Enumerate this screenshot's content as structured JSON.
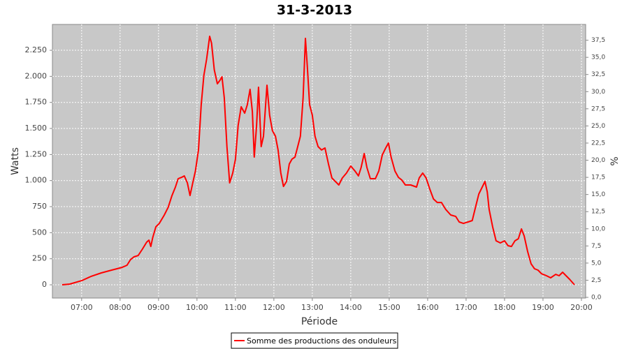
{
  "chart_data": {
    "type": "line",
    "title": "31-3-2013",
    "x_label": "Période",
    "y_label": "Watts",
    "y2_label": "%",
    "grid": true,
    "legend": "bottom",
    "x": [
      6.49,
      6.69,
      7.0,
      7.24,
      7.51,
      7.78,
      8.05,
      8.18,
      8.27,
      8.36,
      8.47,
      8.58,
      8.69,
      8.75,
      8.8,
      8.85,
      8.93,
      9.02,
      9.15,
      9.25,
      9.35,
      9.44,
      9.51,
      9.6,
      9.67,
      9.75,
      9.82,
      9.89,
      9.96,
      10.04,
      10.11,
      10.18,
      10.25,
      10.33,
      10.38,
      10.45,
      10.53,
      10.6,
      10.65,
      10.71,
      10.78,
      10.85,
      10.93,
      11.0,
      11.07,
      11.15,
      11.24,
      11.31,
      11.38,
      11.44,
      11.49,
      11.55,
      11.6,
      11.67,
      11.73,
      11.82,
      11.89,
      11.96,
      12.04,
      12.11,
      12.18,
      12.25,
      12.33,
      12.4,
      12.47,
      12.55,
      12.62,
      12.69,
      12.76,
      12.82,
      12.87,
      12.93,
      13.0,
      13.07,
      13.15,
      13.24,
      13.33,
      13.42,
      13.51,
      13.6,
      13.69,
      13.78,
      13.89,
      14.0,
      14.11,
      14.2,
      14.27,
      14.35,
      14.42,
      14.51,
      14.64,
      14.73,
      14.82,
      14.91,
      14.98,
      15.05,
      15.15,
      15.24,
      15.33,
      15.42,
      15.56,
      15.71,
      15.78,
      15.87,
      15.96,
      16.05,
      16.15,
      16.25,
      16.36,
      16.47,
      16.6,
      16.73,
      16.82,
      16.93,
      17.05,
      17.16,
      17.24,
      17.33,
      17.42,
      17.49,
      17.55,
      17.6,
      17.69,
      17.78,
      17.89,
      18.0,
      18.09,
      18.18,
      18.27,
      18.36,
      18.44,
      18.51,
      18.6,
      18.69,
      18.78,
      18.87,
      18.96,
      19.09,
      19.2,
      19.33,
      19.42,
      19.51,
      19.6,
      19.69,
      19.82
    ],
    "series": [
      {
        "name": "Somme des productions des onduleurs",
        "color": "#ff0000",
        "values": [
          0,
          7,
          40,
          80,
          114,
          141,
          167,
          188,
          241,
          268,
          281,
          342,
          409,
          429,
          368,
          455,
          556,
          589,
          670,
          743,
          857,
          938,
          1018,
          1031,
          1045,
          978,
          857,
          978,
          1092,
          1293,
          1728,
          2009,
          2163,
          2384,
          2317,
          2063,
          1929,
          1962,
          1996,
          1795,
          1326,
          978,
          1072,
          1205,
          1527,
          1708,
          1647,
          1728,
          1875,
          1661,
          1226,
          1527,
          1895,
          1326,
          1426,
          1915,
          1627,
          1480,
          1426,
          1293,
          1072,
          944,
          991,
          1159,
          1205,
          1226,
          1326,
          1426,
          1795,
          2364,
          2096,
          1728,
          1627,
          1426,
          1326,
          1293,
          1313,
          1159,
          1025,
          991,
          958,
          1025,
          1072,
          1139,
          1092,
          1045,
          1125,
          1259,
          1125,
          1018,
          1018,
          1092,
          1246,
          1313,
          1360,
          1226,
          1092,
          1031,
          1005,
          958,
          958,
          938,
          1025,
          1072,
          1025,
          924,
          824,
          790,
          790,
          723,
          670,
          656,
          603,
          589,
          603,
          616,
          737,
          871,
          938,
          991,
          891,
          723,
          556,
          422,
          402,
          422,
          375,
          368,
          422,
          442,
          536,
          469,
          321,
          201,
          154,
          141,
          107,
          87,
          67,
          100,
          87,
          121,
          87,
          54,
          0
        ]
      }
    ],
    "xlim": [
      6.24,
      20.11
    ],
    "xticks": [
      {
        "value": 7,
        "label": "07:00"
      },
      {
        "value": 8,
        "label": "08:00"
      },
      {
        "value": 9,
        "label": "09:00"
      },
      {
        "value": 10,
        "label": "10:00"
      },
      {
        "value": 11,
        "label": "11:00"
      },
      {
        "value": 12,
        "label": "12:00"
      },
      {
        "value": 13,
        "label": "13:00"
      },
      {
        "value": 14,
        "label": "14:00"
      },
      {
        "value": 15,
        "label": "15:00"
      },
      {
        "value": 16,
        "label": "16:00"
      },
      {
        "value": 17,
        "label": "17:00"
      },
      {
        "value": 18,
        "label": "18:00"
      },
      {
        "value": 19,
        "label": "19:00"
      },
      {
        "value": 20,
        "label": "20:00"
      }
    ],
    "ylim": [
      -127,
      2498
    ],
    "yticks": [
      0,
      250,
      500,
      750,
      {
        "value": 1000,
        "label": "1.000"
      },
      {
        "value": 1250,
        "label": "1.250"
      },
      {
        "value": 1500,
        "label": "1.500"
      },
      {
        "value": 1750,
        "label": "1.750"
      },
      {
        "value": 2000,
        "label": "2.000"
      },
      {
        "value": 2250,
        "label": "2.250"
      }
    ],
    "y2lim": [
      -0.1,
      39.8
    ],
    "y2ticks": [
      {
        "value": 0,
        "label": "0,0"
      },
      {
        "value": 2.5,
        "label": "2,5"
      },
      {
        "value": 5,
        "label": "5,0"
      },
      {
        "value": 7.5,
        "label": "7,5"
      },
      {
        "value": 10,
        "label": "10,0"
      },
      {
        "value": 12.5,
        "label": "12,5"
      },
      {
        "value": 15,
        "label": "15,0"
      },
      {
        "value": 17.5,
        "label": "17,5"
      },
      {
        "value": 20,
        "label": "20,0"
      },
      {
        "value": 22.5,
        "label": "22,5"
      },
      {
        "value": 25,
        "label": "25,0"
      },
      {
        "value": 27.5,
        "label": "27,5"
      },
      {
        "value": 30,
        "label": "30,0"
      },
      {
        "value": 32.5,
        "label": "32,5"
      },
      {
        "value": 35,
        "label": "35,0"
      },
      {
        "value": 37.5,
        "label": "37,5"
      }
    ]
  }
}
